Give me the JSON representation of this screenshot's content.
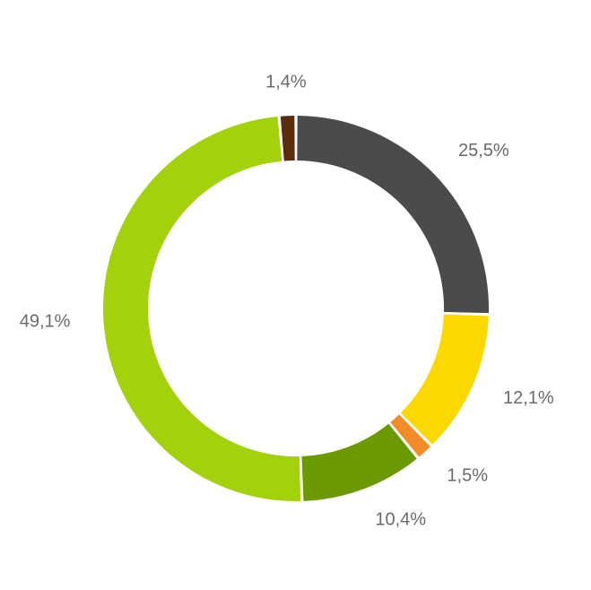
{
  "chart_data": {
    "type": "pie",
    "variant": "donut",
    "title": "",
    "legend": "none",
    "slices": [
      {
        "value": 25.5,
        "label": "25,5%",
        "color": "#4b4b4b"
      },
      {
        "value": 12.1,
        "label": "12,1%",
        "color": "#fad800"
      },
      {
        "value": 1.5,
        "label": "1,5%",
        "color": "#f28c28"
      },
      {
        "value": 10.4,
        "label": "10,4%",
        "color": "#6a9a00"
      },
      {
        "value": 49.1,
        "label": "49,1%",
        "color": "#a3d10c"
      },
      {
        "value": 1.4,
        "label": "1,4%",
        "color": "#5a2d0c"
      }
    ]
  }
}
